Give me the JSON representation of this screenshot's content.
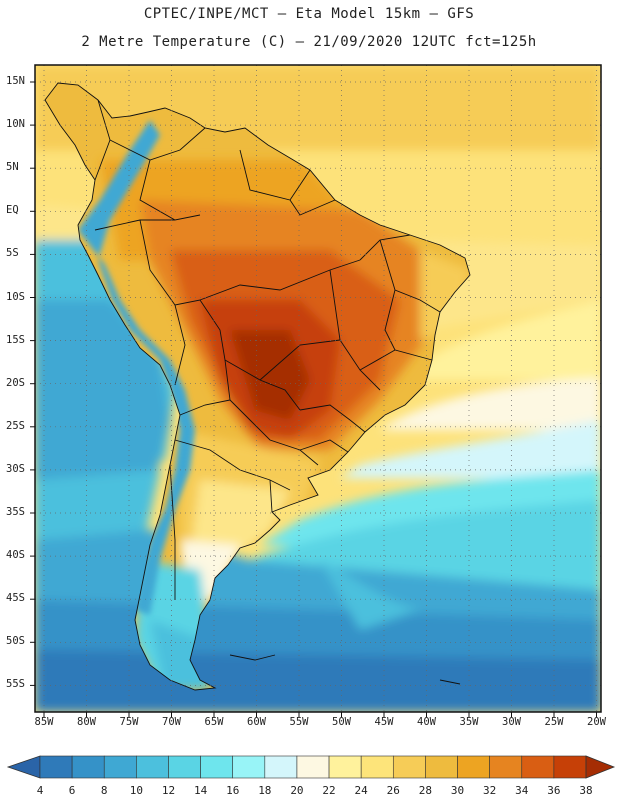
{
  "header": {
    "line1": "CPTEC/INPE/MCT –  Eta Model 15km – GFS",
    "line2": "2 Metre Temperature (C) – 21/09/2020 12UTC fct=125h"
  },
  "map": {
    "variable": "2 Metre Temperature",
    "units": "C",
    "region": "South America",
    "lat_labels": [
      "15N",
      "10N",
      "5N",
      "EQ",
      "5S",
      "10S",
      "15S",
      "20S",
      "25S",
      "30S",
      "35S",
      "40S",
      "45S",
      "50S",
      "55S"
    ],
    "lon_labels": [
      "85W",
      "80W",
      "75W",
      "70W",
      "65W",
      "60W",
      "55W",
      "50W",
      "45W",
      "40W",
      "35W",
      "30W",
      "25W",
      "20W"
    ]
  },
  "legend": {
    "ticks": [
      "4",
      "6",
      "8",
      "10",
      "12",
      "14",
      "16",
      "18",
      "20",
      "22",
      "24",
      "26",
      "28",
      "30",
      "32",
      "34",
      "36",
      "38"
    ],
    "colors": [
      "#2a64a8",
      "#2f7ab9",
      "#3592c8",
      "#3fa8d3",
      "#4cc0dd",
      "#5ad4e4",
      "#6ee5ed",
      "#98f4f7",
      "#d4f6fb",
      "#fdf8e2",
      "#fff29c",
      "#fde47a",
      "#f6cc57",
      "#eebb3e",
      "#eda422",
      "#e68420",
      "#d95e13",
      "#c64007",
      "#a52d04"
    ]
  }
}
